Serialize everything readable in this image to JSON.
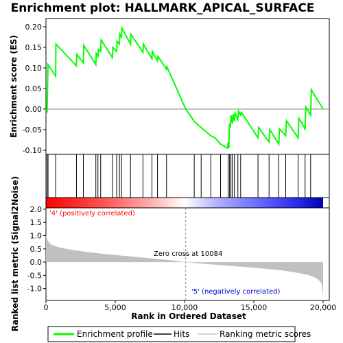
{
  "chart_data": {
    "title": "Enrichment plot: HALLMARK_APICAL_SURFACE",
    "top_panel": {
      "type": "line",
      "ylabel": "Enrichment score (ES)",
      "ylim": [
        -0.11,
        0.22
      ],
      "yticks": [
        -0.1,
        -0.05,
        0.0,
        0.05,
        0.1,
        0.15,
        0.2
      ],
      "ytick_labels": [
        "-0.10",
        "-0.05",
        "0.00",
        "0.05",
        "0.10",
        "0.15",
        "0.20"
      ],
      "line_color": "#00ff00",
      "series": [
        {
          "x": [
            0,
            80,
            150,
            700,
            720,
            2200,
            2230,
            2700,
            2730,
            3600,
            3630,
            3750,
            3780,
            3950,
            3980,
            4800,
            4830,
            5100,
            5130,
            5300,
            5330,
            5450,
            5480,
            6100,
            6130,
            7000,
            7030,
            7650,
            7680,
            8050,
            8080,
            8700,
            8730,
            10084,
            10700,
            11200,
            11900,
            12200,
            12600,
            13100,
            13150,
            13200,
            13250,
            13300,
            13350,
            13450,
            13500,
            13600,
            13650,
            13850,
            13900,
            14050,
            14100,
            15300,
            15350,
            16100,
            16150,
            16800,
            16850,
            17300,
            17350,
            18200,
            18250,
            18700,
            18750,
            19100,
            19150,
            20000
          ],
          "y": [
            0.0,
            -0.005,
            0.108,
            0.08,
            0.158,
            0.105,
            0.133,
            0.112,
            0.155,
            0.108,
            0.135,
            0.128,
            0.145,
            0.14,
            0.168,
            0.125,
            0.15,
            0.14,
            0.165,
            0.158,
            0.182,
            0.175,
            0.197,
            0.158,
            0.182,
            0.138,
            0.158,
            0.122,
            0.14,
            0.117,
            0.128,
            0.097,
            0.103,
            0.0,
            -0.03,
            -0.045,
            -0.065,
            -0.07,
            -0.085,
            -0.095,
            -0.08,
            -0.095,
            -0.035,
            -0.045,
            -0.015,
            -0.035,
            -0.012,
            -0.03,
            -0.01,
            -0.025,
            -0.005,
            -0.015,
            -0.008,
            -0.07,
            -0.045,
            -0.08,
            -0.05,
            -0.085,
            -0.048,
            -0.065,
            -0.028,
            -0.07,
            -0.022,
            -0.048,
            0.005,
            -0.015,
            0.047,
            0.0
          ]
        }
      ]
    },
    "hits": [
      80,
      150,
      700,
      2200,
      2700,
      3600,
      3750,
      3950,
      4800,
      5100,
      5300,
      5450,
      6100,
      7000,
      7650,
      8050,
      8700,
      10700,
      11200,
      11900,
      12600,
      13150,
      13250,
      13350,
      13450,
      13600,
      13850,
      14050,
      15300,
      16100,
      16800,
      17300,
      18200,
      18700,
      19100
    ],
    "heatmap_legend": {
      "positive_label": "'4' (positively correlated)",
      "negative_label": "'5' (negatively correlated)",
      "positive_color": "#ff0000",
      "negative_color": "#0000cc"
    },
    "bottom_panel": {
      "type": "area",
      "ylabel": "Ranked list metric (Signal2Noise)",
      "xlabel": "Rank in Ordered Dataset",
      "xlim": [
        0,
        20000
      ],
      "xticks": [
        0,
        5000,
        10000,
        15000,
        20000
      ],
      "xtick_labels": [
        "0",
        "5,000",
        "10,000",
        "15,000",
        "20,000"
      ],
      "ylim": [
        -1.45,
        2.05
      ],
      "yticks": [
        -1.0,
        -0.5,
        0.0,
        0.5,
        1.0,
        1.5,
        2.0
      ],
      "ytick_labels": [
        "-1.0",
        "-0.5",
        "0.0",
        "0.5",
        "1.0",
        "1.5",
        "2.0"
      ],
      "fill_color": "#c0c0c0",
      "zero_cross": 10084,
      "zero_cross_label": "Zero cross at 10084",
      "series": [
        {
          "x": [
            0,
            50,
            100,
            200,
            400,
            700,
            1000,
            1500,
            2000,
            3000,
            4000,
            5000,
            6000,
            7000,
            8000,
            9000,
            10084,
            11000,
            12000,
            13000,
            14000,
            15000,
            16000,
            17000,
            17500,
            18000,
            18500,
            19000,
            19300,
            19600,
            19800,
            19900,
            19950,
            20000
          ],
          "y": [
            1.02,
            0.95,
            0.85,
            0.75,
            0.66,
            0.6,
            0.55,
            0.5,
            0.45,
            0.38,
            0.32,
            0.27,
            0.22,
            0.17,
            0.12,
            0.07,
            0.0,
            -0.05,
            -0.09,
            -0.13,
            -0.17,
            -0.21,
            -0.26,
            -0.31,
            -0.35,
            -0.39,
            -0.44,
            -0.5,
            -0.56,
            -0.64,
            -0.74,
            -0.84,
            -1.0,
            -1.38
          ]
        }
      ]
    },
    "legend": {
      "entries": [
        "Enrichment profile",
        "Hits",
        "Ranking metric scores"
      ],
      "colors": [
        "#00ff00",
        "#000000",
        "#c0c0c0"
      ]
    }
  }
}
